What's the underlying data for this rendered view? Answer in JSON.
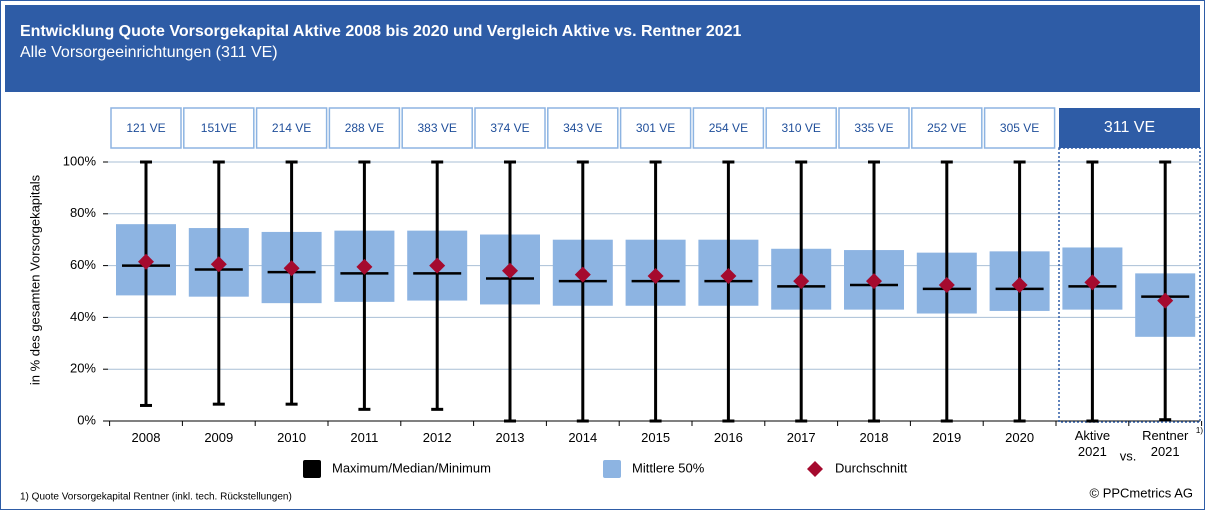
{
  "chart_data": {
    "type": "box",
    "title": "Entwicklung Quote Vorsorgekapital Aktive 2008 bis 2020 und Vergleich Aktive vs. Rentner 2021",
    "subtitle": "Alle Vorsorgeeinrichtungen (311 VE)",
    "y_label": "in % des gesamten Vorsorgekapitals",
    "categories": [
      "2008",
      "2009",
      "2010",
      "2011",
      "2012",
      "2013",
      "2014",
      "2015",
      "2016",
      "2017",
      "2018",
      "2019",
      "2020",
      "Aktive\n2021",
      "Rentner\n2021"
    ],
    "sample_sizes": [
      "121 VE",
      "151VE",
      "214 VE",
      "288 VE",
      "383 VE",
      "374 VE",
      "343 VE",
      "301 VE",
      "254 VE",
      "310 VE",
      "335 VE",
      "252 VE",
      "305 VE"
    ],
    "sample_size_2021": "311 VE",
    "vs_label": "vs.",
    "footnote_marker": "1)",
    "max": [
      100,
      100,
      100,
      100,
      100,
      100,
      100,
      100,
      100,
      100,
      100,
      100,
      100,
      100,
      100
    ],
    "q3": [
      76,
      74.5,
      73,
      73.5,
      73.5,
      72,
      70,
      70,
      70,
      66.5,
      66,
      65,
      65.5,
      67,
      57
    ],
    "median": [
      60,
      58.5,
      57.5,
      57,
      57,
      55,
      54,
      54,
      54,
      52,
      52.5,
      51,
      51,
      52,
      48
    ],
    "q1": [
      48.5,
      48,
      45.5,
      46,
      46.5,
      45,
      44.5,
      44.5,
      44.5,
      43,
      43,
      41.5,
      42.5,
      43,
      32.5
    ],
    "min": [
      6,
      6.5,
      6.5,
      4.5,
      4.5,
      0,
      0,
      0,
      0,
      0,
      0,
      0,
      0,
      0,
      0.5
    ],
    "mean": [
      61.5,
      60.5,
      59,
      59.5,
      60,
      58,
      56.5,
      56,
      56,
      54,
      54,
      52.5,
      52.5,
      53.5,
      46.5
    ],
    "legend": [
      {
        "name": "Maximum/Median/Minimum",
        "color": "#000000"
      },
      {
        "name": "Mittlere 50%",
        "color": "#8db4e2"
      },
      {
        "name": "Durchschnitt",
        "color": "#a50a2e"
      }
    ],
    "ylim": [
      0,
      100
    ],
    "yticks": [
      {
        "value": 0,
        "label": "0%"
      },
      {
        "value": 20,
        "label": "20%"
      },
      {
        "value": 40,
        "label": "40%"
      },
      {
        "value": 60,
        "label": "60%"
      },
      {
        "value": 80,
        "label": "80%"
      },
      {
        "value": 100,
        "label": "100%"
      }
    ],
    "grid": true,
    "footnote": "1) Quote Vorsorgekapital Rentner (inkl. tech. Rückstellungen)",
    "source": "© PPCmetrics AG"
  }
}
